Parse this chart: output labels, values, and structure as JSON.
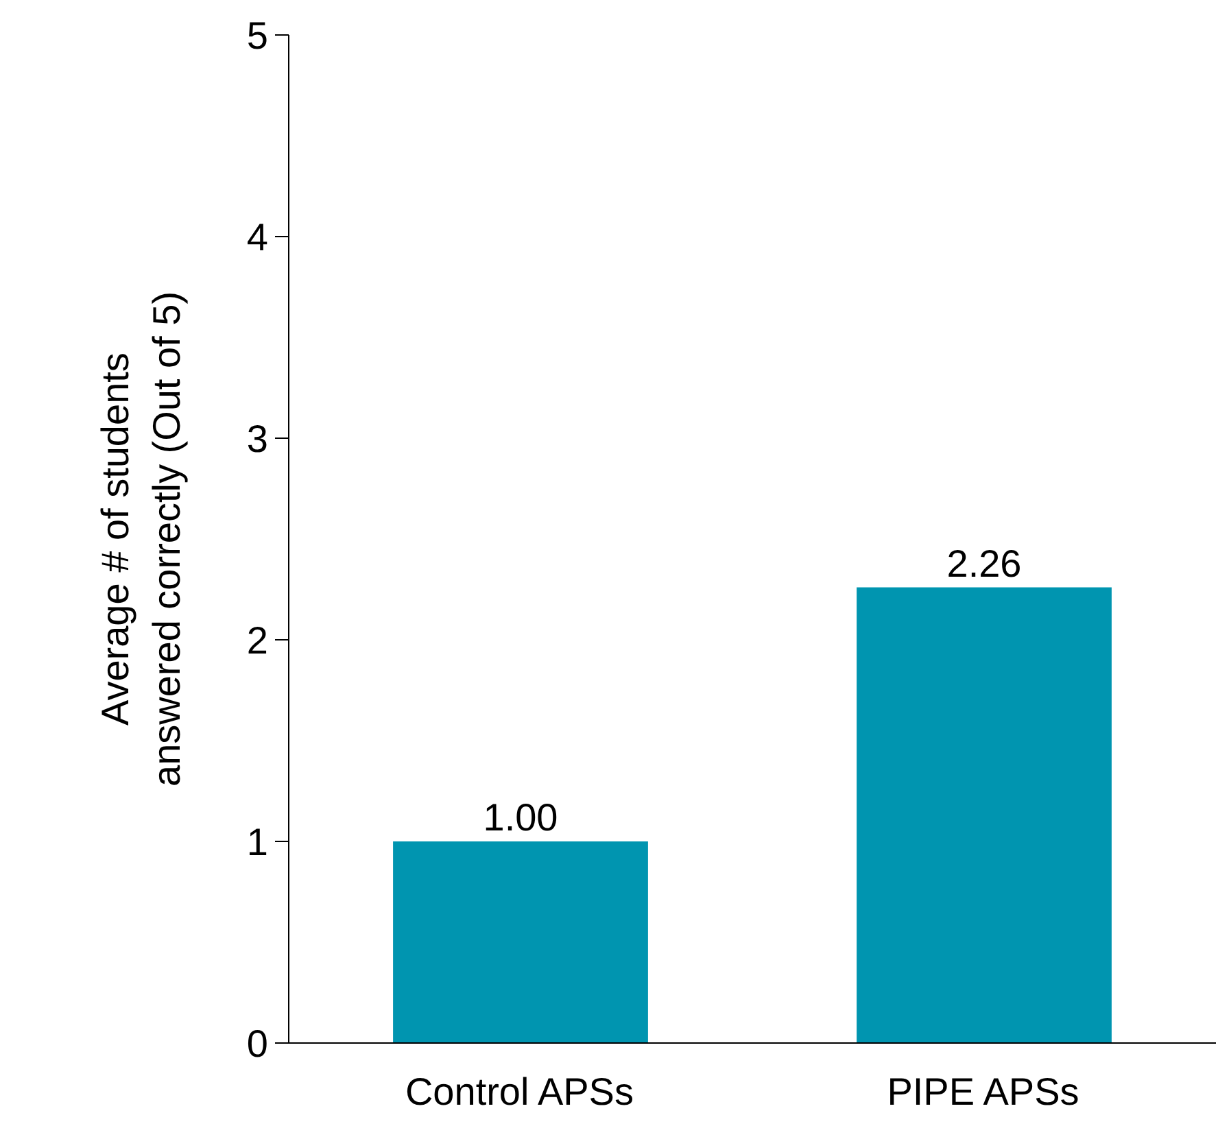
{
  "chart_data": {
    "type": "bar",
    "ylabel": "Average # of students\nanswered correctly (Out of 5)",
    "categories": [
      "Control APSs",
      "PIPE APSs"
    ],
    "values": [
      1.0,
      2.26
    ],
    "value_labels": [
      "1.00",
      "2.26"
    ],
    "color": "#0095b0",
    "ylim": [
      0,
      5
    ],
    "yticks": [
      0,
      1,
      2,
      3,
      4,
      5
    ],
    "grid": false
  }
}
